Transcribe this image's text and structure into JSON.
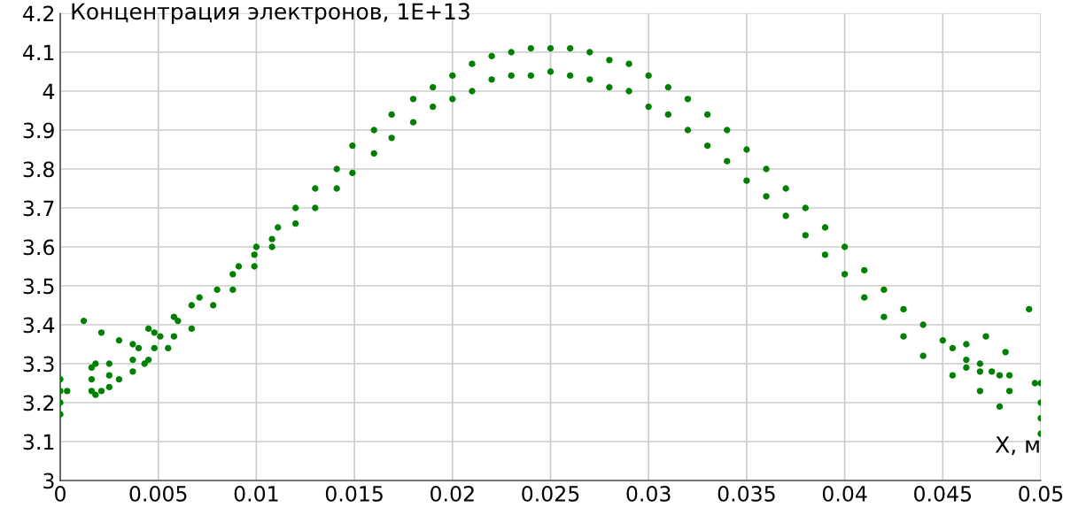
{
  "chart_data": {
    "type": "scatter",
    "title": "Концентрация электронов, 1E+13",
    "xlabel": "X, м",
    "x": [
      0,
      0,
      0,
      0,
      0.00035,
      0.0012,
      0.0016,
      0.0016,
      0.0016,
      0.0018,
      0.0018,
      0.0021,
      0.0021,
      0.0025,
      0.0025,
      0.0025,
      0.003,
      0.003,
      0.0037,
      0.0037,
      0.0037,
      0.004,
      0.0043,
      0.0045,
      0.0045,
      0.0048,
      0.0048,
      0.0051,
      0.0055,
      0.0058,
      0.0058,
      0.006,
      0.0067,
      0.0067,
      0.0071,
      0.0078,
      0.008,
      0.0088,
      0.0088,
      0.0091,
      0.0099,
      0.0099,
      0.01,
      0.0108,
      0.0108,
      0.0111,
      0.012,
      0.012,
      0.013,
      0.013,
      0.0141,
      0.0141,
      0.0149,
      0.0149,
      0.016,
      0.016,
      0.0169,
      0.0169,
      0.018,
      0.018,
      0.019,
      0.019,
      0.02,
      0.02,
      0.021,
      0.021,
      0.022,
      0.022,
      0.023,
      0.023,
      0.024,
      0.024,
      0.025,
      0.025,
      0.026,
      0.026,
      0.027,
      0.027,
      0.028,
      0.028,
      0.029,
      0.029,
      0.03,
      0.03,
      0.031,
      0.031,
      0.032,
      0.032,
      0.033,
      0.033,
      0.034,
      0.034,
      0.035,
      0.035,
      0.036,
      0.036,
      0.037,
      0.037,
      0.038,
      0.038,
      0.039,
      0.039,
      0.04,
      0.04,
      0.041,
      0.041,
      0.042,
      0.042,
      0.043,
      0.043,
      0.044,
      0.044,
      0.045,
      0.0455,
      0.0455,
      0.0462,
      0.0462,
      0.0462,
      0.0469,
      0.0469,
      0.0469,
      0.0472,
      0.0475,
      0.0479,
      0.0479,
      0.0482,
      0.0484,
      0.0484,
      0.0494,
      0.0497,
      0.05,
      0.05,
      0.05,
      0.05
    ],
    "values": [
      3.26,
      3.23,
      3.2,
      3.17,
      3.23,
      3.41,
      3.29,
      3.26,
      3.23,
      3.3,
      3.22,
      3.38,
      3.23,
      3.3,
      3.27,
      3.24,
      3.36,
      3.26,
      3.35,
      3.31,
      3.28,
      3.34,
      3.3,
      3.39,
      3.31,
      3.38,
      3.34,
      3.37,
      3.34,
      3.42,
      3.37,
      3.41,
      3.45,
      3.39,
      3.47,
      3.45,
      3.49,
      3.53,
      3.49,
      3.55,
      3.58,
      3.55,
      3.6,
      3.62,
      3.6,
      3.65,
      3.7,
      3.66,
      3.75,
      3.7,
      3.8,
      3.75,
      3.86,
      3.79,
      3.9,
      3.84,
      3.94,
      3.88,
      3.98,
      3.92,
      4.01,
      3.96,
      4.04,
      3.98,
      4.07,
      4.0,
      4.09,
      4.03,
      4.1,
      4.04,
      4.11,
      4.04,
      4.11,
      4.05,
      4.11,
      4.04,
      4.1,
      4.03,
      4.08,
      4.01,
      4.07,
      4.0,
      4.04,
      3.96,
      4.01,
      3.94,
      3.98,
      3.9,
      3.94,
      3.86,
      3.9,
      3.82,
      3.85,
      3.77,
      3.8,
      3.73,
      3.75,
      3.68,
      3.7,
      3.63,
      3.65,
      3.58,
      3.6,
      3.53,
      3.54,
      3.47,
      3.49,
      3.42,
      3.44,
      3.37,
      3.4,
      3.32,
      3.36,
      3.34,
      3.27,
      3.35,
      3.31,
      3.29,
      3.3,
      3.28,
      3.23,
      3.37,
      3.28,
      3.27,
      3.19,
      3.33,
      3.27,
      3.23,
      3.44,
      3.25,
      3.25,
      3.2,
      3.16,
      3.12
    ],
    "color": "#008000",
    "marker": "circle",
    "grid": true,
    "xlim": [
      0,
      0.05
    ],
    "xticks": [
      0,
      0.005,
      0.01,
      0.015,
      0.02,
      0.025,
      0.03,
      0.035,
      0.04,
      0.045,
      0.05
    ],
    "ylim": [
      3,
      4.2
    ],
    "yticks": [
      3,
      3.1,
      3.2,
      3.3,
      3.4,
      3.5,
      3.6,
      3.7,
      3.8,
      3.9,
      4,
      4.1,
      4.2
    ]
  }
}
